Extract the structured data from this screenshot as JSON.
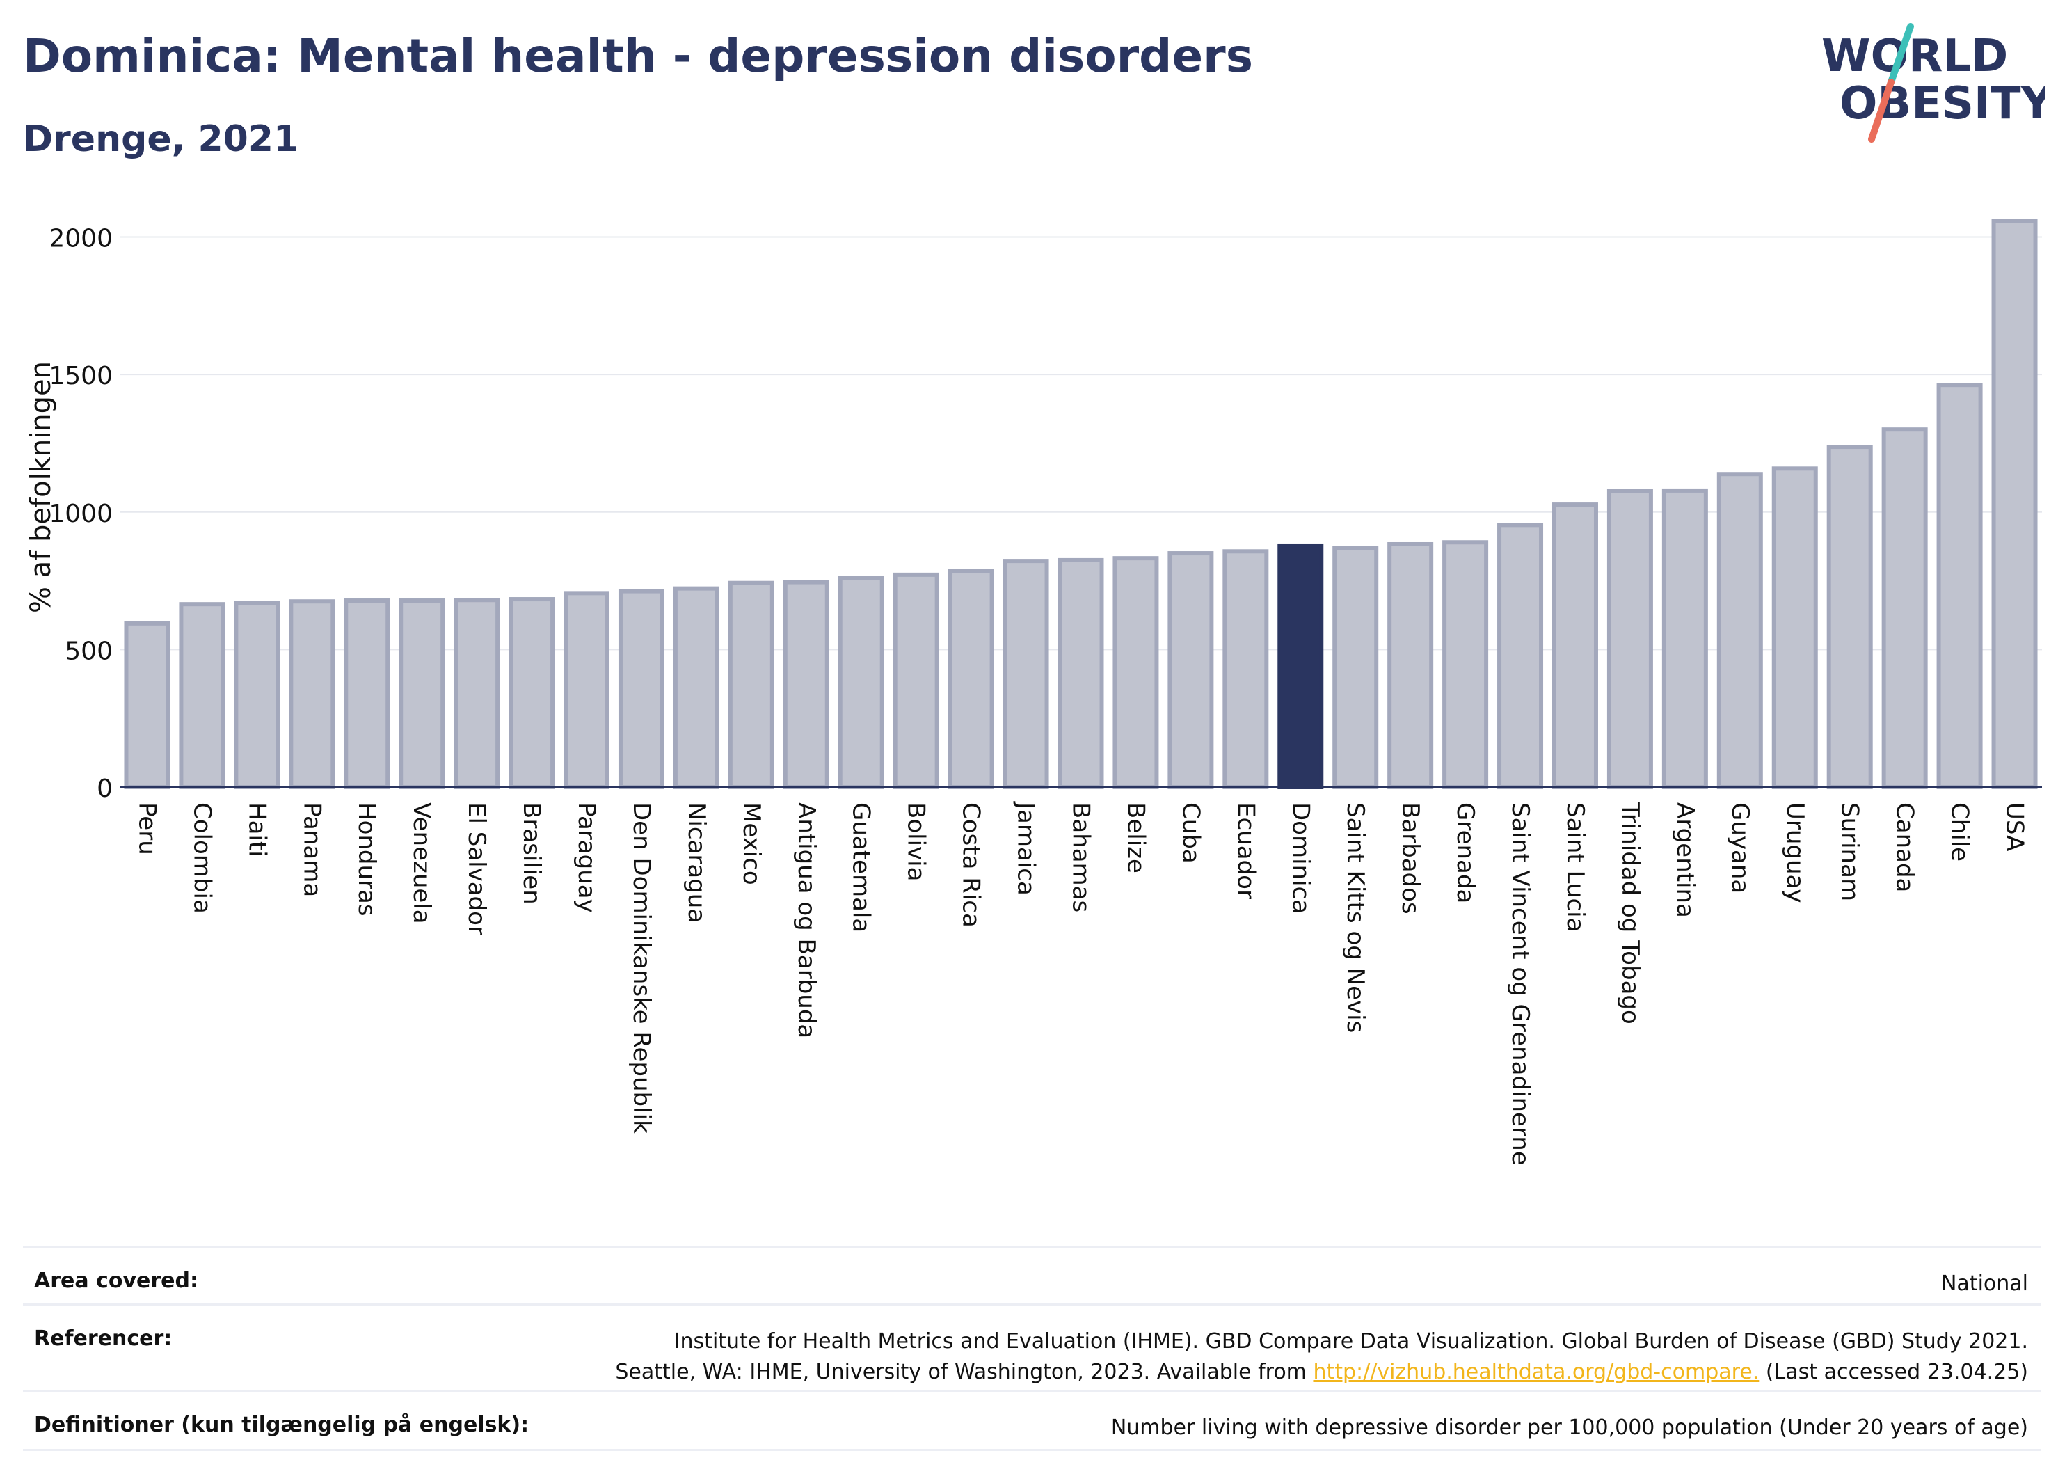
{
  "header": {
    "title": "Dominica: Mental health - depression disorders",
    "subtitle": "Drenge, 2021"
  },
  "logo": {
    "line1": "WORLD",
    "line2": "OBESITY"
  },
  "colors": {
    "highlight_bar": "#2a3560",
    "bar_fill": "#c0c3cf",
    "bar_stroke": "#a3a8bc",
    "title": "#2a3560",
    "link": "#f2b51b",
    "logo_teal": "#3dbfb8",
    "logo_coral": "#ea6d5a"
  },
  "chart_data": {
    "type": "bar",
    "ylabel": "% af befolkningen",
    "ylim": [
      0,
      2100
    ],
    "yticks": [
      0,
      500,
      1000,
      1500,
      2000
    ],
    "grid": true,
    "highlight": "Dominica",
    "categories": [
      "Peru",
      "Colombia",
      "Haiti",
      "Panama",
      "Honduras",
      "Venezuela",
      "El Salvador",
      "Brasilien",
      "Paraguay",
      "Den Dominikanske Republik",
      "Nicaragua",
      "Mexico",
      "Antigua og Barbuda",
      "Guatemala",
      "Bolivia",
      "Costa Rica",
      "Jamaica",
      "Bahamas",
      "Belize",
      "Cuba",
      "Ecuador",
      "Dominica",
      "Saint Kitts og Nevis",
      "Barbados",
      "Grenada",
      "Saint Vincent og Grenadinerne",
      "Saint Lucia",
      "Trinidad og Tobago",
      "Argentina",
      "Guyana",
      "Uruguay",
      "Surinam",
      "Canada",
      "Chile",
      "USA"
    ],
    "values": [
      595,
      665,
      668,
      675,
      678,
      678,
      680,
      683,
      705,
      712,
      722,
      742,
      745,
      760,
      772,
      785,
      822,
      825,
      832,
      850,
      857,
      878,
      870,
      883,
      890,
      953,
      1027,
      1077,
      1078,
      1138,
      1158,
      1237,
      1300,
      1462,
      2057
    ]
  },
  "footer": {
    "area_label": "Area covered:",
    "area_value": "National",
    "ref_label": "Referencer:",
    "ref_line1": "Institute for Health Metrics and Evaluation (IHME). GBD Compare Data Visualization. Global Burden of Disease (GBD) Study 2021.",
    "ref_line2_pre": "Seattle, WA: IHME, University of Washington, 2023. Available from ",
    "ref_link": "http://vizhub.healthdata.org/gbd-compare.",
    "ref_line2_post": " (Last accessed 23.04.25)",
    "def_label": "Definitioner (kun tilgængelig på engelsk):",
    "def_value": "Number living with depressive disorder per 100,000 population (Under 20 years of age)"
  }
}
